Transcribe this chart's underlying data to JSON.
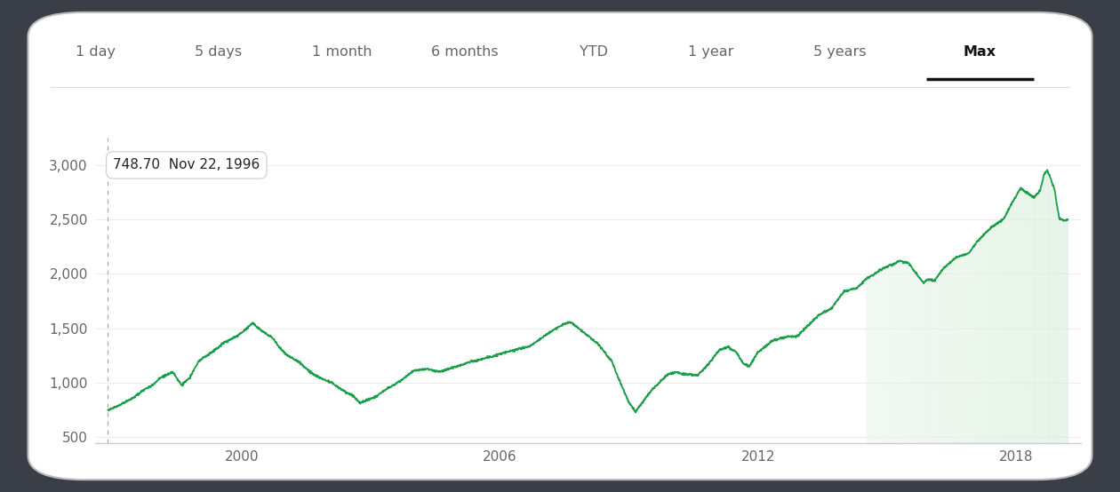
{
  "title_tabs": [
    "1 day",
    "5 days",
    "1 month",
    "6 months",
    "YTD",
    "1 year",
    "5 years",
    "Max"
  ],
  "active_tab": "Max",
  "tooltip_value": "748.70",
  "tooltip_date": "Nov 22, 1996",
  "tooltip_x_year": 1996.896,
  "line_color": "#1a9e4a",
  "fill_color_recent": "#dcf0e3",
  "background_outer": "#3a3f47",
  "card_facecolor": "#ffffff",
  "card_edgecolor": "#cccccc",
  "yticks": [
    500,
    1000,
    1500,
    2000,
    2500,
    3000
  ],
  "xtick_years": [
    1997,
    2000,
    2003,
    2006,
    2009,
    2012,
    2015,
    2018
  ],
  "xtick_labels": [
    "",
    "2000",
    "",
    "2006",
    "",
    "2012",
    "",
    "2018"
  ],
  "xlim": [
    1996.6,
    2019.5
  ],
  "ylim": [
    450,
    3250
  ],
  "key_points": [
    [
      1996.896,
      748
    ],
    [
      1997.2,
      800
    ],
    [
      1997.5,
      870
    ],
    [
      1997.7,
      930
    ],
    [
      1997.9,
      970
    ],
    [
      1998.1,
      1040
    ],
    [
      1998.4,
      1100
    ],
    [
      1998.6,
      980
    ],
    [
      1998.8,
      1050
    ],
    [
      1999.0,
      1200
    ],
    [
      1999.3,
      1280
    ],
    [
      1999.6,
      1370
    ],
    [
      1999.9,
      1430
    ],
    [
      2000.1,
      1490
    ],
    [
      2000.25,
      1550
    ],
    [
      2000.5,
      1470
    ],
    [
      2000.7,
      1420
    ],
    [
      2001.0,
      1270
    ],
    [
      2001.3,
      1200
    ],
    [
      2001.6,
      1100
    ],
    [
      2001.8,
      1050
    ],
    [
      2002.1,
      1000
    ],
    [
      2002.4,
      920
    ],
    [
      2002.6,
      880
    ],
    [
      2002.75,
      815
    ],
    [
      2002.9,
      840
    ],
    [
      2003.1,
      870
    ],
    [
      2003.4,
      950
    ],
    [
      2003.7,
      1020
    ],
    [
      2004.0,
      1110
    ],
    [
      2004.3,
      1130
    ],
    [
      2004.6,
      1100
    ],
    [
      2004.9,
      1140
    ],
    [
      2005.2,
      1180
    ],
    [
      2005.5,
      1210
    ],
    [
      2005.8,
      1240
    ],
    [
      2006.1,
      1280
    ],
    [
      2006.4,
      1310
    ],
    [
      2006.7,
      1330
    ],
    [
      2007.0,
      1420
    ],
    [
      2007.3,
      1500
    ],
    [
      2007.5,
      1540
    ],
    [
      2007.65,
      1560
    ],
    [
      2007.8,
      1510
    ],
    [
      2008.0,
      1450
    ],
    [
      2008.3,
      1350
    ],
    [
      2008.6,
      1200
    ],
    [
      2008.8,
      1000
    ],
    [
      2009.0,
      820
    ],
    [
      2009.15,
      735
    ],
    [
      2009.3,
      810
    ],
    [
      2009.5,
      920
    ],
    [
      2009.7,
      1000
    ],
    [
      2009.9,
      1080
    ],
    [
      2010.1,
      1100
    ],
    [
      2010.3,
      1080
    ],
    [
      2010.6,
      1070
    ],
    [
      2010.8,
      1150
    ],
    [
      2011.1,
      1300
    ],
    [
      2011.3,
      1330
    ],
    [
      2011.5,
      1280
    ],
    [
      2011.65,
      1180
    ],
    [
      2011.8,
      1150
    ],
    [
      2012.0,
      1280
    ],
    [
      2012.3,
      1380
    ],
    [
      2012.6,
      1420
    ],
    [
      2012.9,
      1430
    ],
    [
      2013.1,
      1500
    ],
    [
      2013.4,
      1620
    ],
    [
      2013.7,
      1680
    ],
    [
      2014.0,
      1840
    ],
    [
      2014.3,
      1870
    ],
    [
      2014.5,
      1950
    ],
    [
      2014.7,
      2000
    ],
    [
      2014.9,
      2050
    ],
    [
      2015.1,
      2080
    ],
    [
      2015.3,
      2120
    ],
    [
      2015.5,
      2100
    ],
    [
      2015.7,
      1990
    ],
    [
      2015.85,
      1920
    ],
    [
      2015.95,
      1950
    ],
    [
      2016.1,
      1940
    ],
    [
      2016.3,
      2050
    ],
    [
      2016.6,
      2150
    ],
    [
      2016.9,
      2190
    ],
    [
      2017.1,
      2300
    ],
    [
      2017.4,
      2420
    ],
    [
      2017.7,
      2500
    ],
    [
      2017.9,
      2650
    ],
    [
      2018.1,
      2790
    ],
    [
      2018.4,
      2700
    ],
    [
      2018.55,
      2760
    ],
    [
      2018.65,
      2920
    ],
    [
      2018.72,
      2950
    ],
    [
      2018.78,
      2900
    ],
    [
      2018.85,
      2820
    ],
    [
      2018.9,
      2760
    ],
    [
      2018.95,
      2620
    ],
    [
      2019.0,
      2510
    ],
    [
      2019.1,
      2490
    ],
    [
      2019.2,
      2500
    ]
  ]
}
